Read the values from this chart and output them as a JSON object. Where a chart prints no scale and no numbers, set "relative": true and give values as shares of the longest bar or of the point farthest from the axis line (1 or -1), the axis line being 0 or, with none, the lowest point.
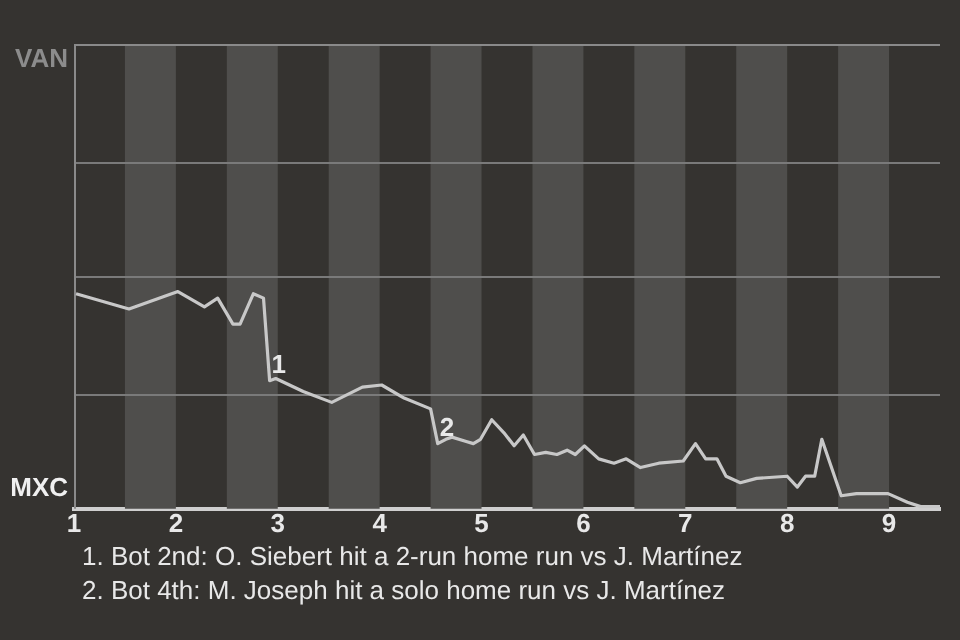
{
  "chart_data": {
    "type": "line",
    "relative": true,
    "x": [
      1.02,
      1.54,
      2.02,
      2.28,
      2.41,
      2.56,
      2.63,
      2.76,
      2.86,
      2.92,
      2.98,
      3.25,
      3.53,
      3.83,
      4.02,
      4.24,
      4.5,
      4.57,
      4.65,
      4.71,
      4.85,
      4.92,
      4.99,
      5.1,
      5.22,
      5.32,
      5.41,
      5.52,
      5.63,
      5.74,
      5.84,
      5.92,
      6.01,
      6.15,
      6.3,
      6.42,
      6.56,
      6.74,
      6.98,
      7.1,
      7.2,
      7.31,
      7.4,
      7.54,
      7.7,
      8.0,
      8.1,
      8.18,
      8.27,
      8.34,
      8.53,
      8.68,
      8.99,
      9.18,
      9.31,
      9.5
    ],
    "series": [
      {
        "color": "#c8c8c8",
        "values": [
          0.99,
          0.92,
          1,
          0.93,
          0.97,
          0.85,
          0.85,
          0.99,
          0.97,
          0.59,
          0.6,
          0.54,
          0.49,
          0.56,
          0.57,
          0.51,
          0.46,
          0.3,
          0.32,
          0.33,
          0.31,
          0.3,
          0.32,
          0.41,
          0.35,
          0.29,
          0.34,
          0.25,
          0.26,
          0.25,
          0.27,
          0.25,
          0.29,
          0.23,
          0.21,
          0.23,
          0.19,
          0.21,
          0.22,
          0.3,
          0.23,
          0.23,
          0.15,
          0.12,
          0.14,
          0.15,
          0.1,
          0.15,
          0.15,
          0.32,
          0.06,
          0.07,
          0.07,
          0.03,
          0.01,
          0.01
        ]
      }
    ],
    "xlim": [
      1,
      9.5
    ],
    "xticks": [
      1,
      2,
      3,
      4,
      5,
      6,
      7,
      8,
      9
    ],
    "ref_lines": [
      {
        "axis": "y",
        "value": 0.53,
        "color": "#7a7a7a"
      },
      {
        "axis": "y",
        "value": 1.07,
        "color": "#7a7a7a"
      },
      {
        "axis": "y",
        "value": 1.6,
        "color": "#7a7a7a"
      }
    ],
    "legend": false,
    "marker": "none",
    "line_style": "solid",
    "bands": [
      {
        "axis": "x",
        "from": 1.5,
        "to": 2,
        "color": "#4f4e4c"
      },
      {
        "axis": "x",
        "from": 2.5,
        "to": 3,
        "color": "#4f4e4c"
      },
      {
        "axis": "x",
        "from": 3.5,
        "to": 4,
        "color": "#4f4e4c"
      },
      {
        "axis": "x",
        "from": 4.5,
        "to": 5,
        "color": "#4f4e4c"
      },
      {
        "axis": "x",
        "from": 5.5,
        "to": 6,
        "color": "#4f4e4c"
      },
      {
        "axis": "x",
        "from": 6.5,
        "to": 7,
        "color": "#4f4e4c"
      },
      {
        "axis": "x",
        "from": 7.5,
        "to": 8,
        "color": "#4f4e4c"
      },
      {
        "axis": "x",
        "from": 8.5,
        "to": 9,
        "color": "#4f4e4c"
      }
    ],
    "annotations": [
      "VAN",
      "MXC",
      {
        "text": "1",
        "x": 2.92,
        "y": 0.59
      },
      {
        "text": "2",
        "x": 4.57,
        "y": 0.3
      },
      "1. Bot 2nd: O. Siebert hit a 2-run home run vs J. Martínez",
      "2. Bot 4th: M. Joseph hit a solo home run vs J. Martínez"
    ]
  }
}
